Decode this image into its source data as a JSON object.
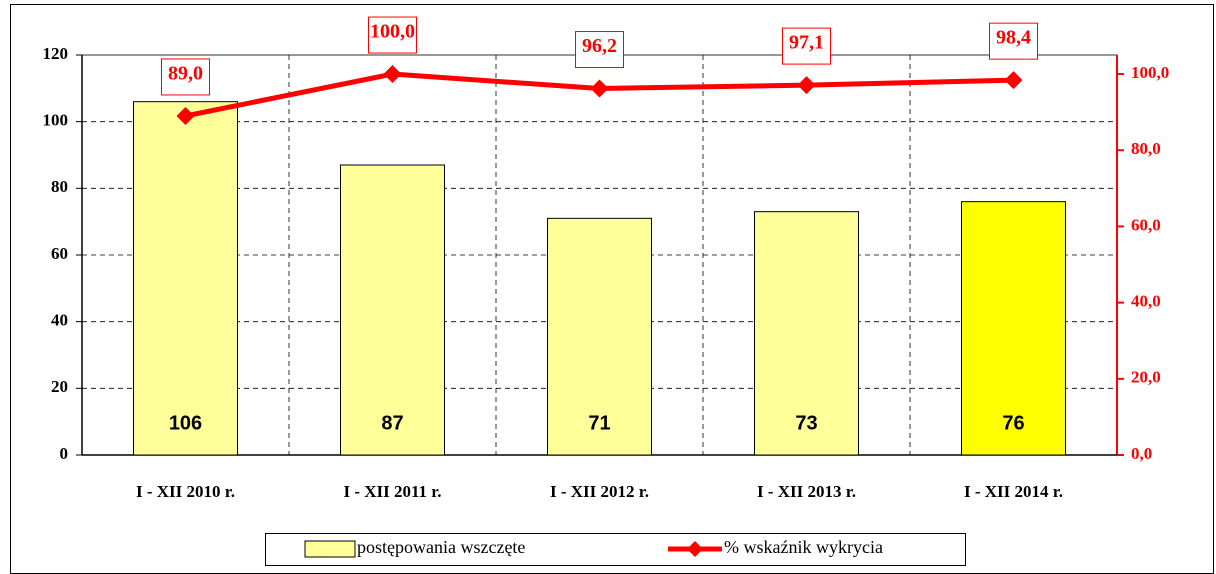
{
  "chart_data": {
    "type": "bar_line",
    "categories": [
      "I - XII 2010 r.",
      "I - XII 2011 r.",
      "I - XII 2012 r.",
      "I - XII 2013 r.",
      "I - XII 2014 r."
    ],
    "series": [
      {
        "name": "postępowania wszczęte",
        "type": "bar",
        "color": "#ffff99",
        "colors": [
          "#ffff99",
          "#ffff99",
          "#ffff99",
          "#ffff99",
          "#ffff00"
        ],
        "values": [
          106,
          87,
          71,
          73,
          76
        ]
      },
      {
        "name": "% wskaźnik wykrycia",
        "type": "line",
        "axis": "y2",
        "color": "#ff0000",
        "values": [
          89.0,
          100.0,
          96.2,
          97.1,
          98.4
        ],
        "value_labels": [
          "89,0",
          "100,0",
          "96,2",
          "97,1",
          "98,4"
        ]
      }
    ],
    "ylim": [
      0,
      120
    ],
    "yticks": [
      0,
      20,
      40,
      60,
      80,
      100,
      120
    ],
    "y2lim": [
      0,
      105
    ],
    "y2ticks": [
      {
        "value": 0,
        "label": "0,0"
      },
      {
        "value": 20,
        "label": "20,0"
      },
      {
        "value": 40,
        "label": "40,0"
      },
      {
        "value": 60,
        "label": "60,0"
      },
      {
        "value": 80,
        "label": "80,0"
      },
      {
        "value": 100,
        "label": "100,0"
      }
    ],
    "grid": true,
    "legend": "bottom"
  }
}
